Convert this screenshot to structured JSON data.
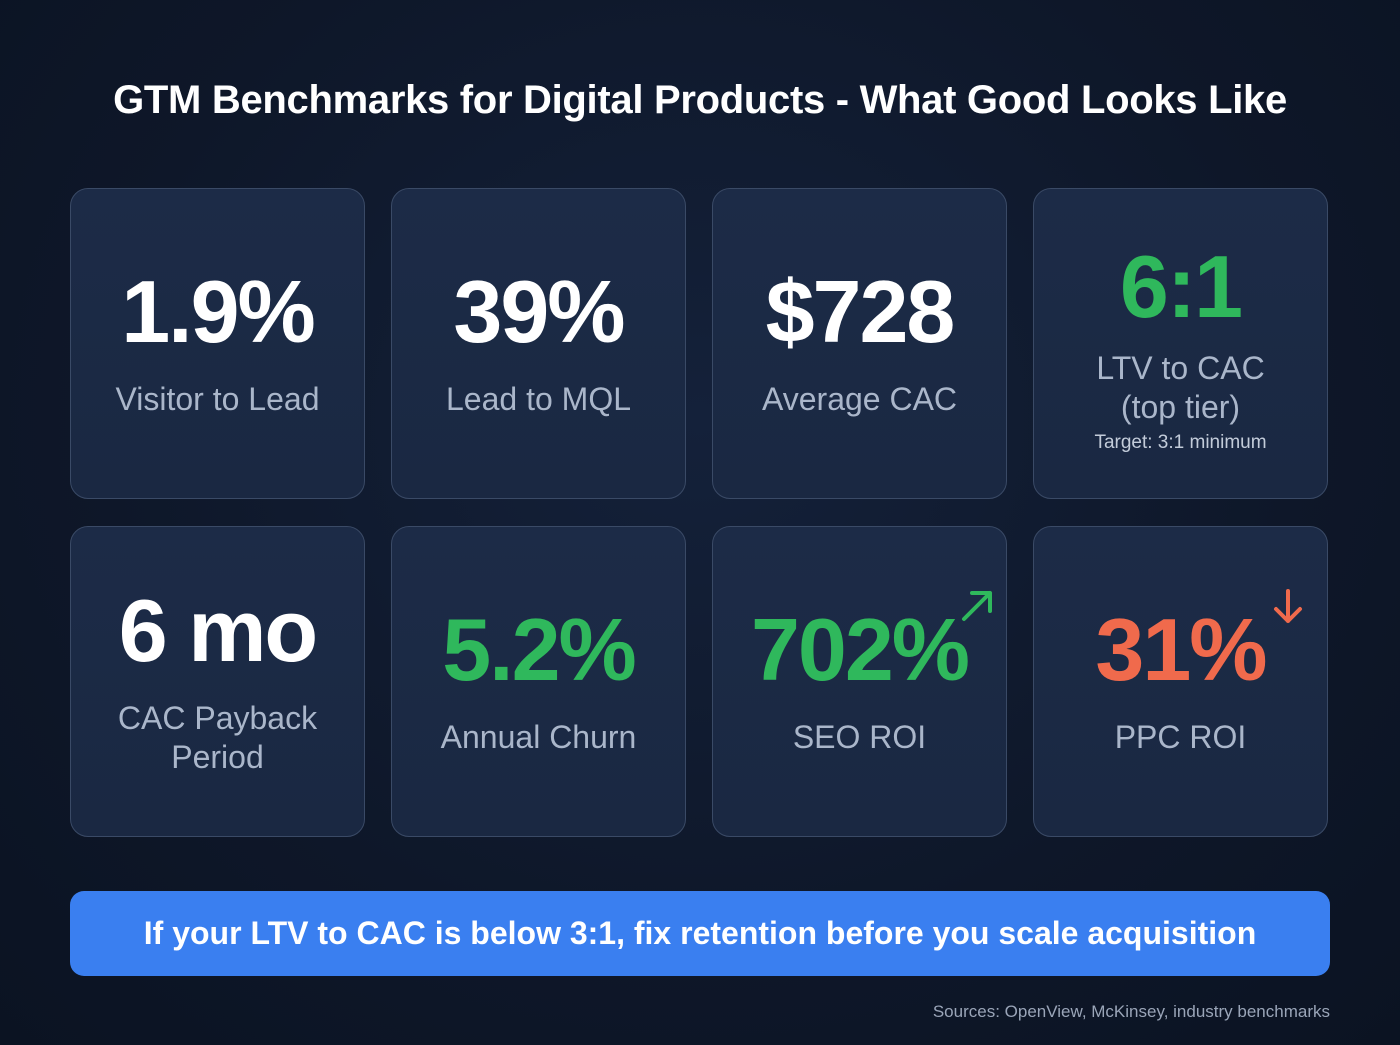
{
  "title": "GTM Benchmarks for Digital Products - What Good Looks Like",
  "colors": {
    "positive": "#2fb85c",
    "negative": "#f06a4c",
    "neutral": "#ffffff",
    "banner": "#3a7ff0",
    "background": "#0e1729",
    "card": "#1c2b47"
  },
  "cards": [
    {
      "value": "1.9%",
      "label": "Visitor to Lead",
      "tone": "white"
    },
    {
      "value": "39%",
      "label": "Lead to MQL",
      "tone": "white"
    },
    {
      "value": "$728",
      "label": "Average CAC",
      "tone": "white"
    },
    {
      "value": "6:1",
      "label": "LTV to CAC",
      "label2": "(top tier)",
      "sub": "Target: 3:1 minimum",
      "tone": "green"
    },
    {
      "value": "6 mo",
      "label": "CAC Payback",
      "label2": "Period",
      "tone": "white"
    },
    {
      "value": "5.2%",
      "label": "Annual Churn",
      "tone": "green"
    },
    {
      "value": "702%",
      "label": "SEO ROI",
      "tone": "green",
      "icon": "arrow-up-right-icon"
    },
    {
      "value": "31%",
      "label": "PPC ROI",
      "tone": "red",
      "icon": "arrow-down-icon"
    }
  ],
  "banner": "If your LTV to CAC is below 3:1, fix retention before you scale acquisition",
  "sources": "Sources: OpenView, McKinsey, industry benchmarks"
}
